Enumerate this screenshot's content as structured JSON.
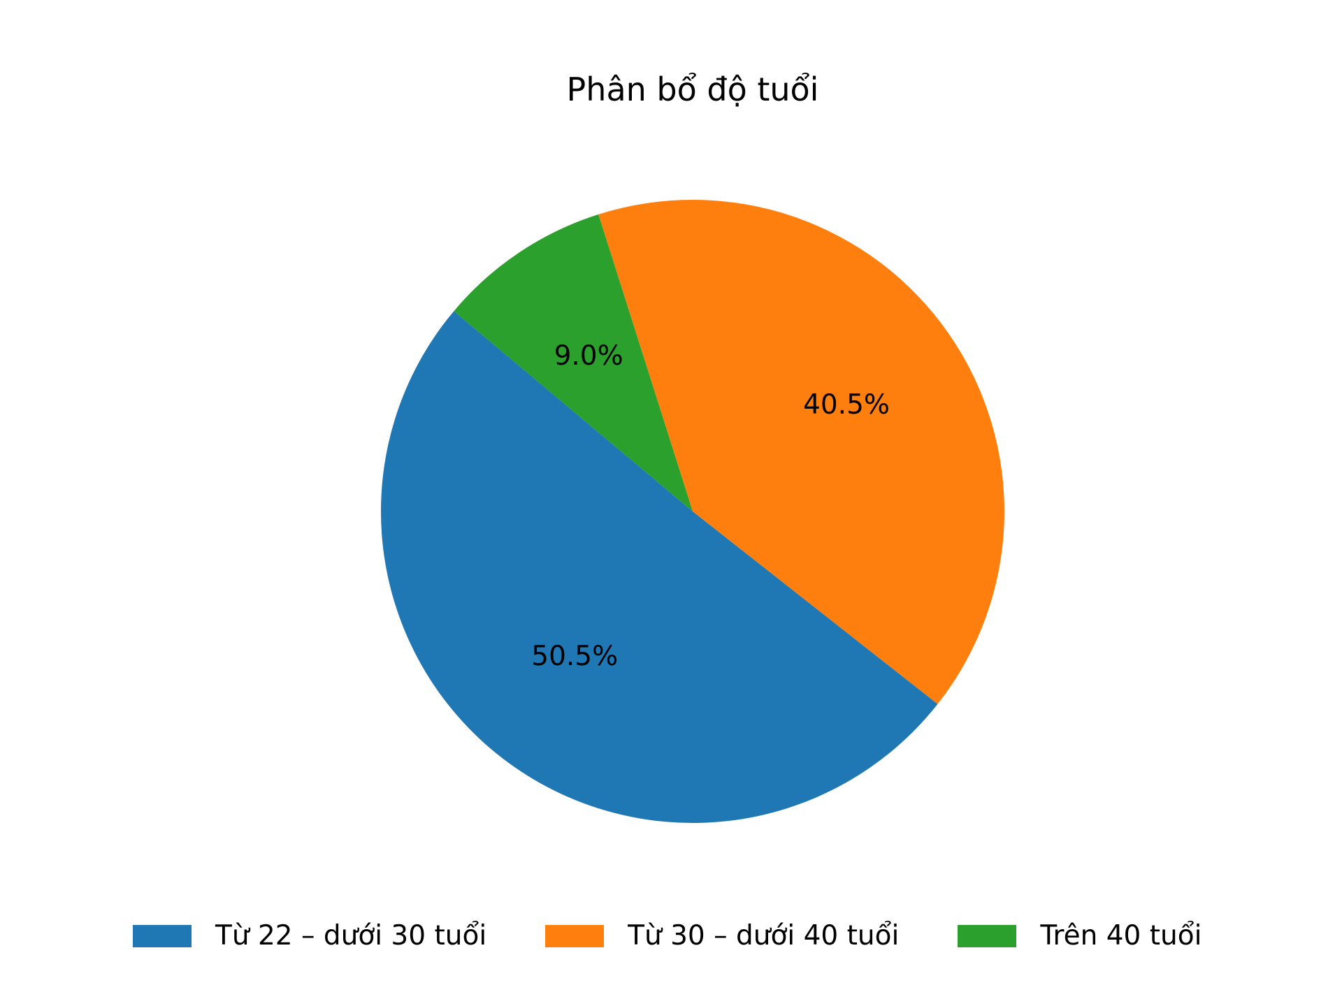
{
  "chart_data": {
    "type": "pie",
    "title": "Phân bổ độ tuổi",
    "start_angle_deg": 140,
    "direction": "counterclockwise",
    "legend_position": "bottom",
    "slices": [
      {
        "label": "Từ 22 – dưới 30 tuổi",
        "value": 50.5,
        "pct_text": "50.5%",
        "color": "#1f77b4"
      },
      {
        "label": "Từ 30 – dưới 40 tuổi",
        "value": 40.5,
        "pct_text": "40.5%",
        "color": "#ff7f0e"
      },
      {
        "label": "Trên 40 tuổi",
        "value": 9.0,
        "pct_text": "9.0%",
        "color": "#2ca02c"
      }
    ]
  }
}
